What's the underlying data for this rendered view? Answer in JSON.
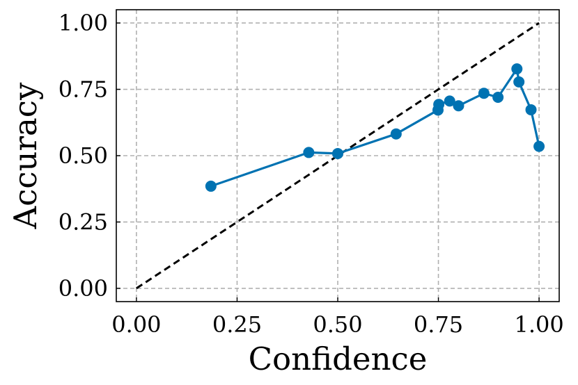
{
  "chart_data": {
    "type": "line",
    "title": "",
    "xlabel": "Confidence",
    "ylabel": "Accuracy",
    "xlim": [
      -0.05,
      1.05
    ],
    "ylim": [
      -0.05,
      1.05
    ],
    "xticks": [
      0.0,
      0.25,
      0.5,
      0.75,
      1.0
    ],
    "xtick_labels": [
      "0.00",
      "0.25",
      "0.50",
      "0.75",
      "1.00"
    ],
    "yticks": [
      0.0,
      0.25,
      0.5,
      0.75,
      1.0
    ],
    "ytick_labels": [
      "0.00",
      "0.25",
      "0.50",
      "0.75",
      "1.00"
    ],
    "grid": true,
    "reference_line": {
      "x": [
        0,
        1
      ],
      "y": [
        0,
        1
      ],
      "style": "dashed",
      "color": "#000000"
    },
    "series": [
      {
        "color": "#0072b2",
        "x": [
          0.185,
          0.428,
          0.5,
          0.645,
          0.749,
          0.751,
          0.778,
          0.8,
          0.863,
          0.898,
          0.945,
          0.95,
          0.98,
          1.0
        ],
        "y": [
          0.385,
          0.512,
          0.508,
          0.582,
          0.672,
          0.693,
          0.706,
          0.688,
          0.735,
          0.72,
          0.827,
          0.778,
          0.673,
          0.535
        ]
      }
    ]
  }
}
